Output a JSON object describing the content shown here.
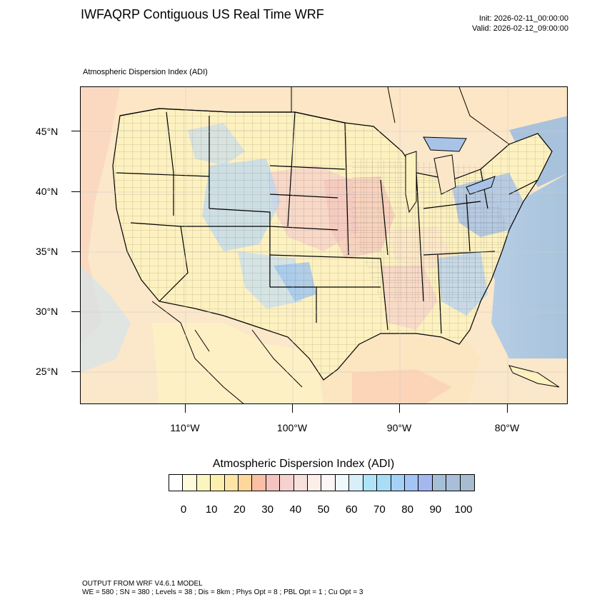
{
  "header": {
    "title": "IWFAQRP Contiguous US Real Time WRF",
    "init": "Init: 2026-02-11_00:00:00",
    "valid": "Valid: 2026-02-12_09:00:00",
    "field_label": "Atmospheric Dispersion Index   (ADI)"
  },
  "map": {
    "lat_labels": [
      "45°N",
      "40°N",
      "35°N",
      "30°N",
      "25°N"
    ],
    "lon_labels": [
      "110°W",
      "100°W",
      "90°W",
      "80°W"
    ]
  },
  "colorbar": {
    "title": "Atmospheric Dispersion Index  (ADI)",
    "labels": [
      "0",
      "10",
      "20",
      "30",
      "40",
      "50",
      "60",
      "70",
      "80",
      "90",
      "100"
    ],
    "colors": [
      "#ffffff",
      "#fdfbdc",
      "#fbf6bf",
      "#fbefad",
      "#fde5a6",
      "#fdd79b",
      "#fbbfa6",
      "#f4c4c0",
      "#f5d2cf",
      "#f8e0dc",
      "#fbeeeb",
      "#fdf6f6",
      "#f0f8fd",
      "#d8eef9",
      "#aee4f6",
      "#a7ddf7",
      "#a6d1f7",
      "#a4c4f6",
      "#a5b7ef",
      "#a5bfd6",
      "#a9bfd9",
      "#a8bccf"
    ]
  },
  "footer": {
    "model": "OUTPUT FROM WRF V4.6.1 MODEL",
    "params": "WE = 580 ; SN = 380 ; Levels = 38 ; Dis = 8km ; Phys Opt = 8 ; PBL Opt = 1 ; Cu Opt = 3"
  }
}
